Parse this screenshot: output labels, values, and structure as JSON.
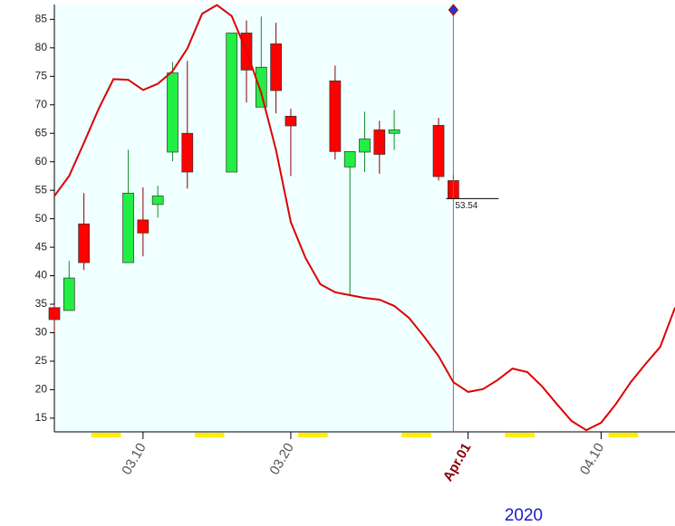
{
  "chart_data": {
    "type": "candlestick",
    "candles": {
      "x": [
        4,
        5,
        6,
        9,
        10,
        11,
        12,
        13,
        16,
        17,
        18,
        19,
        20,
        23,
        24,
        25,
        26,
        27,
        30,
        31
      ],
      "open": [
        34.4,
        33.9,
        49.1,
        42.3,
        49.8,
        52.5,
        61.7,
        65.0,
        58.2,
        82.6,
        69.6,
        80.7,
        68.0,
        74.2,
        59.1,
        61.7,
        65.6,
        65.0,
        66.4,
        56.7
      ],
      "high": [
        35.0,
        42.6,
        54.5,
        62.1,
        55.5,
        55.8,
        77.5,
        77.7,
        82.6,
        84.8,
        85.5,
        84.4,
        69.3,
        76.9,
        61.8,
        68.8,
        67.2,
        69.1,
        67.7,
        57.7
      ],
      "low": [
        30.1,
        33.9,
        41.0,
        42.3,
        43.4,
        50.2,
        60.1,
        55.3,
        58.2,
        70.4,
        69.6,
        68.5,
        57.5,
        60.4,
        36.7,
        58.2,
        57.9,
        62.1,
        56.7,
        53.54
      ],
      "close": [
        32.3,
        39.6,
        42.3,
        54.5,
        47.5,
        54.0,
        75.6,
        58.2,
        82.6,
        76.1,
        76.6,
        72.5,
        66.3,
        61.8,
        61.8,
        64.0,
        61.3,
        65.6,
        57.4,
        53.54
      ],
      "up_color": "#22ee44",
      "down_color": "#ff0000"
    },
    "line": {
      "color": "#dd0000",
      "x": [
        4,
        5,
        6,
        7,
        8,
        9,
        10,
        11,
        12,
        13,
        14,
        15,
        16,
        17,
        18,
        19,
        20,
        21,
        22,
        23,
        24,
        25,
        26,
        27,
        28,
        29,
        30,
        31,
        32,
        33,
        34,
        35,
        36,
        37,
        38,
        39,
        40,
        41,
        42,
        43,
        44,
        45,
        46
      ],
      "values": [
        54.0,
        57.5,
        63.3,
        69.3,
        74.5,
        74.4,
        72.6,
        73.7,
        75.9,
        79.9,
        86.0,
        87.5,
        85.6,
        79.4,
        72.1,
        62.1,
        49.4,
        43.1,
        38.5,
        37.1,
        36.6,
        36.1,
        35.8,
        34.7,
        32.6,
        29.4,
        25.9,
        21.3,
        19.6,
        20.1,
        21.7,
        23.7,
        23.1,
        20.6,
        17.5,
        14.5,
        12.9,
        14.2,
        17.5,
        21.3,
        24.5,
        27.5,
        34.4
      ]
    },
    "xlim": [
      4,
      46
    ],
    "xticks": [
      {
        "value": 10,
        "label": "03.10"
      },
      {
        "value": 20,
        "label": "03.20"
      },
      {
        "value": 32,
        "label": "Apr.01",
        "color": "#8b0000"
      },
      {
        "value": 41,
        "label": "04.10"
      }
    ],
    "ylim": [
      12.6,
      87.6
    ],
    "yticks": [
      15,
      20,
      25,
      30,
      35,
      40,
      45,
      50,
      55,
      60,
      65,
      70,
      75,
      80,
      85
    ],
    "year": "2020"
  }
}
